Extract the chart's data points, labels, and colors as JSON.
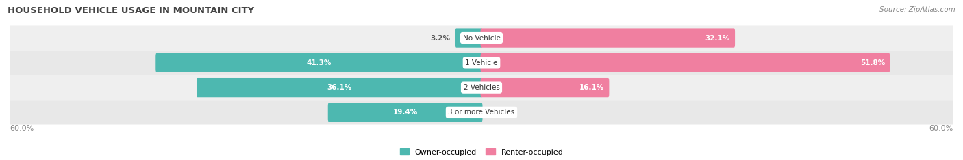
{
  "title": "HOUSEHOLD VEHICLE USAGE IN MOUNTAIN CITY",
  "source": "Source: ZipAtlas.com",
  "categories": [
    "No Vehicle",
    "1 Vehicle",
    "2 Vehicles",
    "3 or more Vehicles"
  ],
  "owner_values": [
    3.2,
    41.3,
    36.1,
    19.4
  ],
  "renter_values": [
    32.1,
    51.8,
    16.1,
    0.0
  ],
  "owner_color": "#4db8b0",
  "renter_color": "#f07fa0",
  "owner_label": "Owner-occupied",
  "renter_label": "Renter-occupied",
  "axis_max": 60.0,
  "axis_label_left": "60.0%",
  "axis_label_right": "60.0%",
  "bar_height": 0.52,
  "row_colors": [
    "#efefef",
    "#e8e8e8",
    "#efefef",
    "#e8e8e8"
  ],
  "bg_color": "#ffffff",
  "label_color_dark": "#555555",
  "label_color_white": "#ffffff",
  "title_color": "#444444",
  "source_color": "#888888",
  "cat_label_color": "#333333",
  "bottom_label_color": "#888888"
}
